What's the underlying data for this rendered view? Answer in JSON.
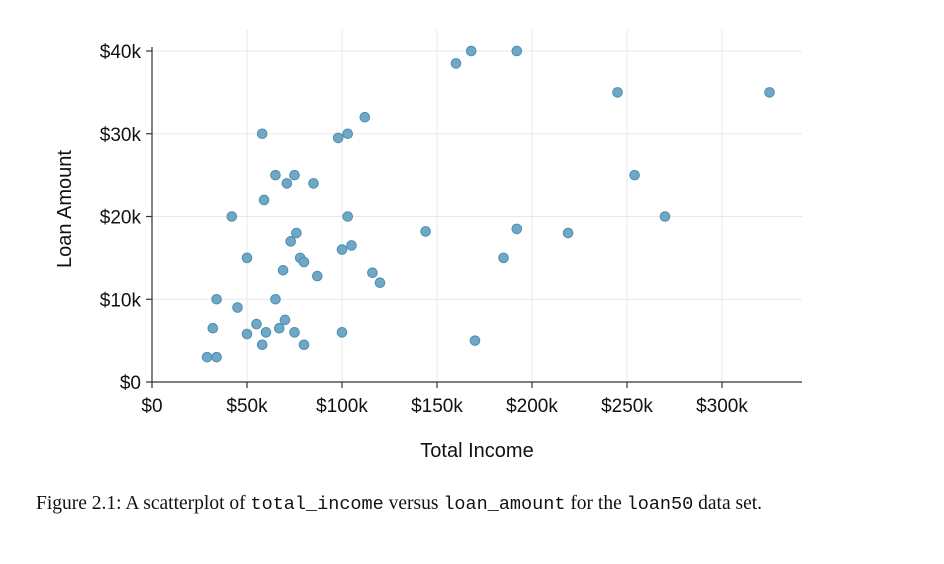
{
  "caption": {
    "label": "Figure 2.1:",
    "text_1": " A scatterplot of ",
    "code_1": "total_income",
    "text_2": " versus ",
    "code_2": "loan_amount",
    "text_3": " for the ",
    "code_3": "loan50",
    "text_4": " data set."
  },
  "chart_data": {
    "type": "scatter",
    "xlabel": "Total Income",
    "ylabel": "Loan Amount",
    "xlim": [
      0,
      340000
    ],
    "ylim": [
      0,
      40000
    ],
    "x_ticks": [
      0,
      50000,
      100000,
      150000,
      200000,
      250000,
      300000
    ],
    "x_tick_labels": [
      "$0",
      "$50k",
      "$100k",
      "$150k",
      "$200k",
      "$250k",
      "$300k"
    ],
    "y_ticks": [
      0,
      10000,
      20000,
      30000,
      40000
    ],
    "y_tick_labels": [
      "$0",
      "$10k",
      "$20k",
      "$30k",
      "$40k"
    ],
    "grid": true,
    "point_color": "#6fa8c6",
    "points": [
      {
        "x": 29000,
        "y": 3000
      },
      {
        "x": 34000,
        "y": 3000
      },
      {
        "x": 32000,
        "y": 6500
      },
      {
        "x": 34000,
        "y": 10000
      },
      {
        "x": 42000,
        "y": 20000
      },
      {
        "x": 45000,
        "y": 9000
      },
      {
        "x": 50000,
        "y": 15000
      },
      {
        "x": 50000,
        "y": 5800
      },
      {
        "x": 55000,
        "y": 7000
      },
      {
        "x": 58000,
        "y": 4500
      },
      {
        "x": 58000,
        "y": 30000
      },
      {
        "x": 59000,
        "y": 22000
      },
      {
        "x": 60000,
        "y": 6000
      },
      {
        "x": 65000,
        "y": 25000
      },
      {
        "x": 65000,
        "y": 10000
      },
      {
        "x": 67000,
        "y": 6500
      },
      {
        "x": 69000,
        "y": 13500
      },
      {
        "x": 70000,
        "y": 7500
      },
      {
        "x": 71000,
        "y": 24000
      },
      {
        "x": 73000,
        "y": 17000
      },
      {
        "x": 75000,
        "y": 25000
      },
      {
        "x": 75000,
        "y": 6000
      },
      {
        "x": 76000,
        "y": 18000
      },
      {
        "x": 78000,
        "y": 15000
      },
      {
        "x": 80000,
        "y": 14500
      },
      {
        "x": 80000,
        "y": 4500
      },
      {
        "x": 85000,
        "y": 24000
      },
      {
        "x": 87000,
        "y": 12800
      },
      {
        "x": 98000,
        "y": 29500
      },
      {
        "x": 100000,
        "y": 16000
      },
      {
        "x": 100000,
        "y": 6000
      },
      {
        "x": 103000,
        "y": 30000
      },
      {
        "x": 103000,
        "y": 20000
      },
      {
        "x": 105000,
        "y": 16500
      },
      {
        "x": 112000,
        "y": 32000
      },
      {
        "x": 116000,
        "y": 13200
      },
      {
        "x": 120000,
        "y": 12000
      },
      {
        "x": 144000,
        "y": 18200
      },
      {
        "x": 160000,
        "y": 38500
      },
      {
        "x": 168000,
        "y": 40000
      },
      {
        "x": 170000,
        "y": 5000
      },
      {
        "x": 185000,
        "y": 15000
      },
      {
        "x": 192000,
        "y": 40000
      },
      {
        "x": 192000,
        "y": 18500
      },
      {
        "x": 219000,
        "y": 18000
      },
      {
        "x": 245000,
        "y": 35000
      },
      {
        "x": 254000,
        "y": 25000
      },
      {
        "x": 270000,
        "y": 20000
      },
      {
        "x": 325000,
        "y": 35000
      }
    ]
  }
}
